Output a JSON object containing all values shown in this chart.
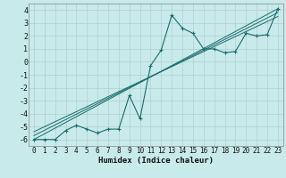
{
  "xlabel": "Humidex (Indice chaleur)",
  "ylabel": "",
  "bg_color": "#c8eaea",
  "grid_color": "#b0d0d0",
  "line_color": "#1a6b6b",
  "xlim": [
    -0.5,
    23.5
  ],
  "ylim": [
    -6.5,
    4.5
  ],
  "xticks": [
    0,
    1,
    2,
    3,
    4,
    5,
    6,
    7,
    8,
    9,
    10,
    11,
    12,
    13,
    14,
    15,
    16,
    17,
    18,
    19,
    20,
    21,
    22,
    23
  ],
  "yticks": [
    -6,
    -5,
    -4,
    -3,
    -2,
    -1,
    0,
    1,
    2,
    3,
    4
  ],
  "line1_x": [
    0,
    1,
    2,
    3,
    4,
    5,
    6,
    7,
    8,
    9,
    10,
    11,
    12,
    13,
    14,
    15,
    16,
    17,
    18,
    19,
    20,
    21,
    22,
    23
  ],
  "line1_y": [
    -6.0,
    -6.0,
    -6.0,
    -5.3,
    -4.9,
    -5.2,
    -5.5,
    -5.2,
    -5.2,
    -2.6,
    -4.4,
    -0.3,
    0.9,
    3.6,
    2.6,
    2.2,
    1.0,
    1.0,
    0.7,
    0.8,
    2.2,
    2.0,
    2.1,
    4.1
  ],
  "line2_x": [
    0,
    23
  ],
  "line2_y": [
    -6.0,
    4.1
  ],
  "line3_x": [
    0,
    23
  ],
  "line3_y": [
    -5.7,
    3.8
  ],
  "line4_x": [
    0,
    23
  ],
  "line4_y": [
    -5.4,
    3.5
  ],
  "xlabel_fontsize": 6.5,
  "tick_fontsize": 5.5
}
